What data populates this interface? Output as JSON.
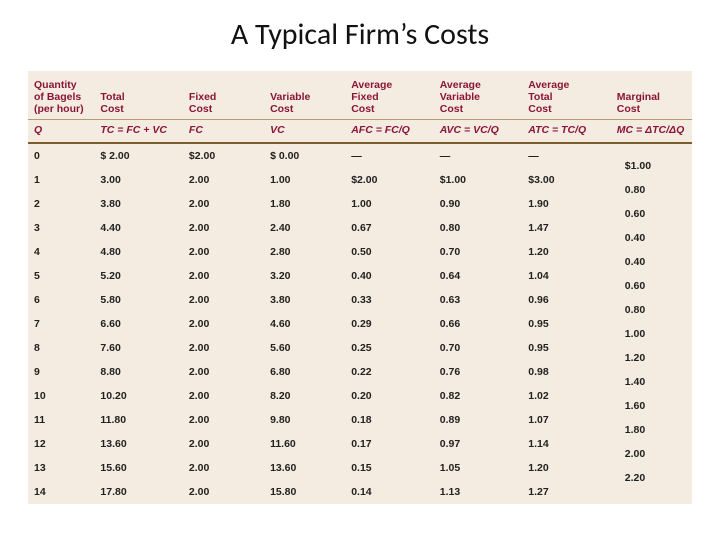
{
  "title": "A Typical Firm’s Costs",
  "colors": {
    "heading": "#8a1538",
    "table_bg": "#f4ece0",
    "rule_light": "#b89a70",
    "rule_dark": "#7a5c2e",
    "text": "#222222",
    "page_bg": "#ffffff"
  },
  "columns": [
    {
      "key": "q",
      "label": "Quantity\nof Bagels\n(per hour)",
      "formula": "Q"
    },
    {
      "key": "tc",
      "label": "Total\nCost",
      "formula": "TC = FC + VC"
    },
    {
      "key": "fc",
      "label": "Fixed\nCost",
      "formula": "FC"
    },
    {
      "key": "vc",
      "label": "Variable\nCost",
      "formula": "VC"
    },
    {
      "key": "afc",
      "label": "Average\nFixed\nCost",
      "formula": "AFC = FC/Q"
    },
    {
      "key": "avc",
      "label": "Average\nVariable\nCost",
      "formula": "AVC = VC/Q"
    },
    {
      "key": "atc",
      "label": "Average\nTotal\nCost",
      "formula": "ATC = TC/Q"
    },
    {
      "key": "mc",
      "label": "Marginal\nCost",
      "formula": "MC = ΔTC/ΔQ"
    }
  ],
  "rows": [
    {
      "q": "0",
      "tc": "$  2.00",
      "fc": "$2.00",
      "vc": "$  0.00",
      "afc": "—",
      "avc": "—",
      "atc": "—",
      "mc": ""
    },
    {
      "q": "1",
      "tc": "3.00",
      "fc": "2.00",
      "vc": "1.00",
      "afc": "$2.00",
      "avc": "$1.00",
      "atc": "$3.00",
      "mc": "$1.00"
    },
    {
      "q": "2",
      "tc": "3.80",
      "fc": "2.00",
      "vc": "1.80",
      "afc": "1.00",
      "avc": "0.90",
      "atc": "1.90",
      "mc": "0.80"
    },
    {
      "q": "3",
      "tc": "4.40",
      "fc": "2.00",
      "vc": "2.40",
      "afc": "0.67",
      "avc": "0.80",
      "atc": "1.47",
      "mc": "0.60"
    },
    {
      "q": "4",
      "tc": "4.80",
      "fc": "2.00",
      "vc": "2.80",
      "afc": "0.50",
      "avc": "0.70",
      "atc": "1.20",
      "mc": "0.40"
    },
    {
      "q": "5",
      "tc": "5.20",
      "fc": "2.00",
      "vc": "3.20",
      "afc": "0.40",
      "avc": "0.64",
      "atc": "1.04",
      "mc": "0.40"
    },
    {
      "q": "6",
      "tc": "5.80",
      "fc": "2.00",
      "vc": "3.80",
      "afc": "0.33",
      "avc": "0.63",
      "atc": "0.96",
      "mc": "0.60"
    },
    {
      "q": "7",
      "tc": "6.60",
      "fc": "2.00",
      "vc": "4.60",
      "afc": "0.29",
      "avc": "0.66",
      "atc": "0.95",
      "mc": "0.80"
    },
    {
      "q": "8",
      "tc": "7.60",
      "fc": "2.00",
      "vc": "5.60",
      "afc": "0.25",
      "avc": "0.70",
      "atc": "0.95",
      "mc": "1.00"
    },
    {
      "q": "9",
      "tc": "8.80",
      "fc": "2.00",
      "vc": "6.80",
      "afc": "0.22",
      "avc": "0.76",
      "atc": "0.98",
      "mc": "1.20"
    },
    {
      "q": "10",
      "tc": "10.20",
      "fc": "2.00",
      "vc": "8.20",
      "afc": "0.20",
      "avc": "0.82",
      "atc": "1.02",
      "mc": "1.40"
    },
    {
      "q": "11",
      "tc": "11.80",
      "fc": "2.00",
      "vc": "9.80",
      "afc": "0.18",
      "avc": "0.89",
      "atc": "1.07",
      "mc": "1.60"
    },
    {
      "q": "12",
      "tc": "13.60",
      "fc": "2.00",
      "vc": "11.60",
      "afc": "0.17",
      "avc": "0.97",
      "atc": "1.14",
      "mc": "1.80"
    },
    {
      "q": "13",
      "tc": "15.60",
      "fc": "2.00",
      "vc": "13.60",
      "afc": "0.15",
      "avc": "1.05",
      "atc": "1.20",
      "mc": "2.00"
    },
    {
      "q": "14",
      "tc": "17.80",
      "fc": "2.00",
      "vc": "15.80",
      "afc": "0.14",
      "avc": "1.13",
      "atc": "1.27",
      "mc": "2.20"
    }
  ]
}
